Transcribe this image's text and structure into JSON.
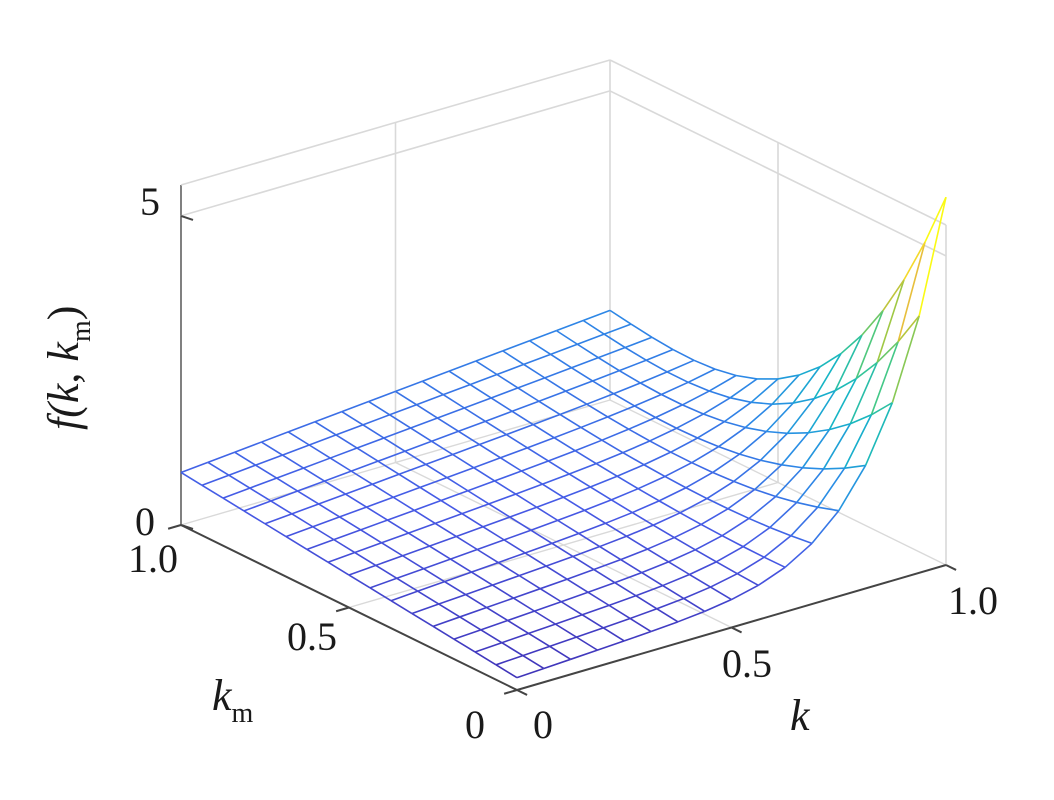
{
  "chart_data": {
    "type": "surface",
    "xlabel": "k",
    "ylabel": "k",
    "ylabel_subscript": "m",
    "zlabel_parts": [
      "f(",
      "k",
      ", ",
      "k",
      "m",
      ")"
    ],
    "x_ticks": [
      "0",
      "0.5",
      "1.0"
    ],
    "y_ticks": [
      "0",
      "0.5",
      "1.0"
    ],
    "z_ticks": [
      "0",
      "5"
    ],
    "xlim": [
      0,
      1
    ],
    "ylim": [
      0,
      1
    ],
    "zlim": [
      0,
      5.5
    ],
    "grid": true,
    "colormap": "parula",
    "surface": {
      "x": [
        0,
        0.0625,
        0.125,
        0.1875,
        0.25,
        0.3125,
        0.375,
        0.4375,
        0.5,
        0.5625,
        0.625,
        0.6875,
        0.75,
        0.8125,
        0.875,
        0.9375,
        1.0
      ],
      "y": [
        0,
        0.0625,
        0.125,
        0.1875,
        0.25,
        0.3125,
        0.375,
        0.4375,
        0.5,
        0.5625,
        0.625,
        0.6875,
        0.75,
        0.8125,
        0.875,
        0.9375,
        1.0
      ],
      "z_corners": {
        "k0_km0": 0.2,
        "k0_km1": 0.85,
        "k1_km1": 1.45,
        "k1_km0": 4.9
      },
      "z_edge_k1": [
        4.9,
        0.55,
        0.85,
        1.45
      ],
      "note_edge": "surface rises sharply along k=1 as km -> 0"
    }
  }
}
